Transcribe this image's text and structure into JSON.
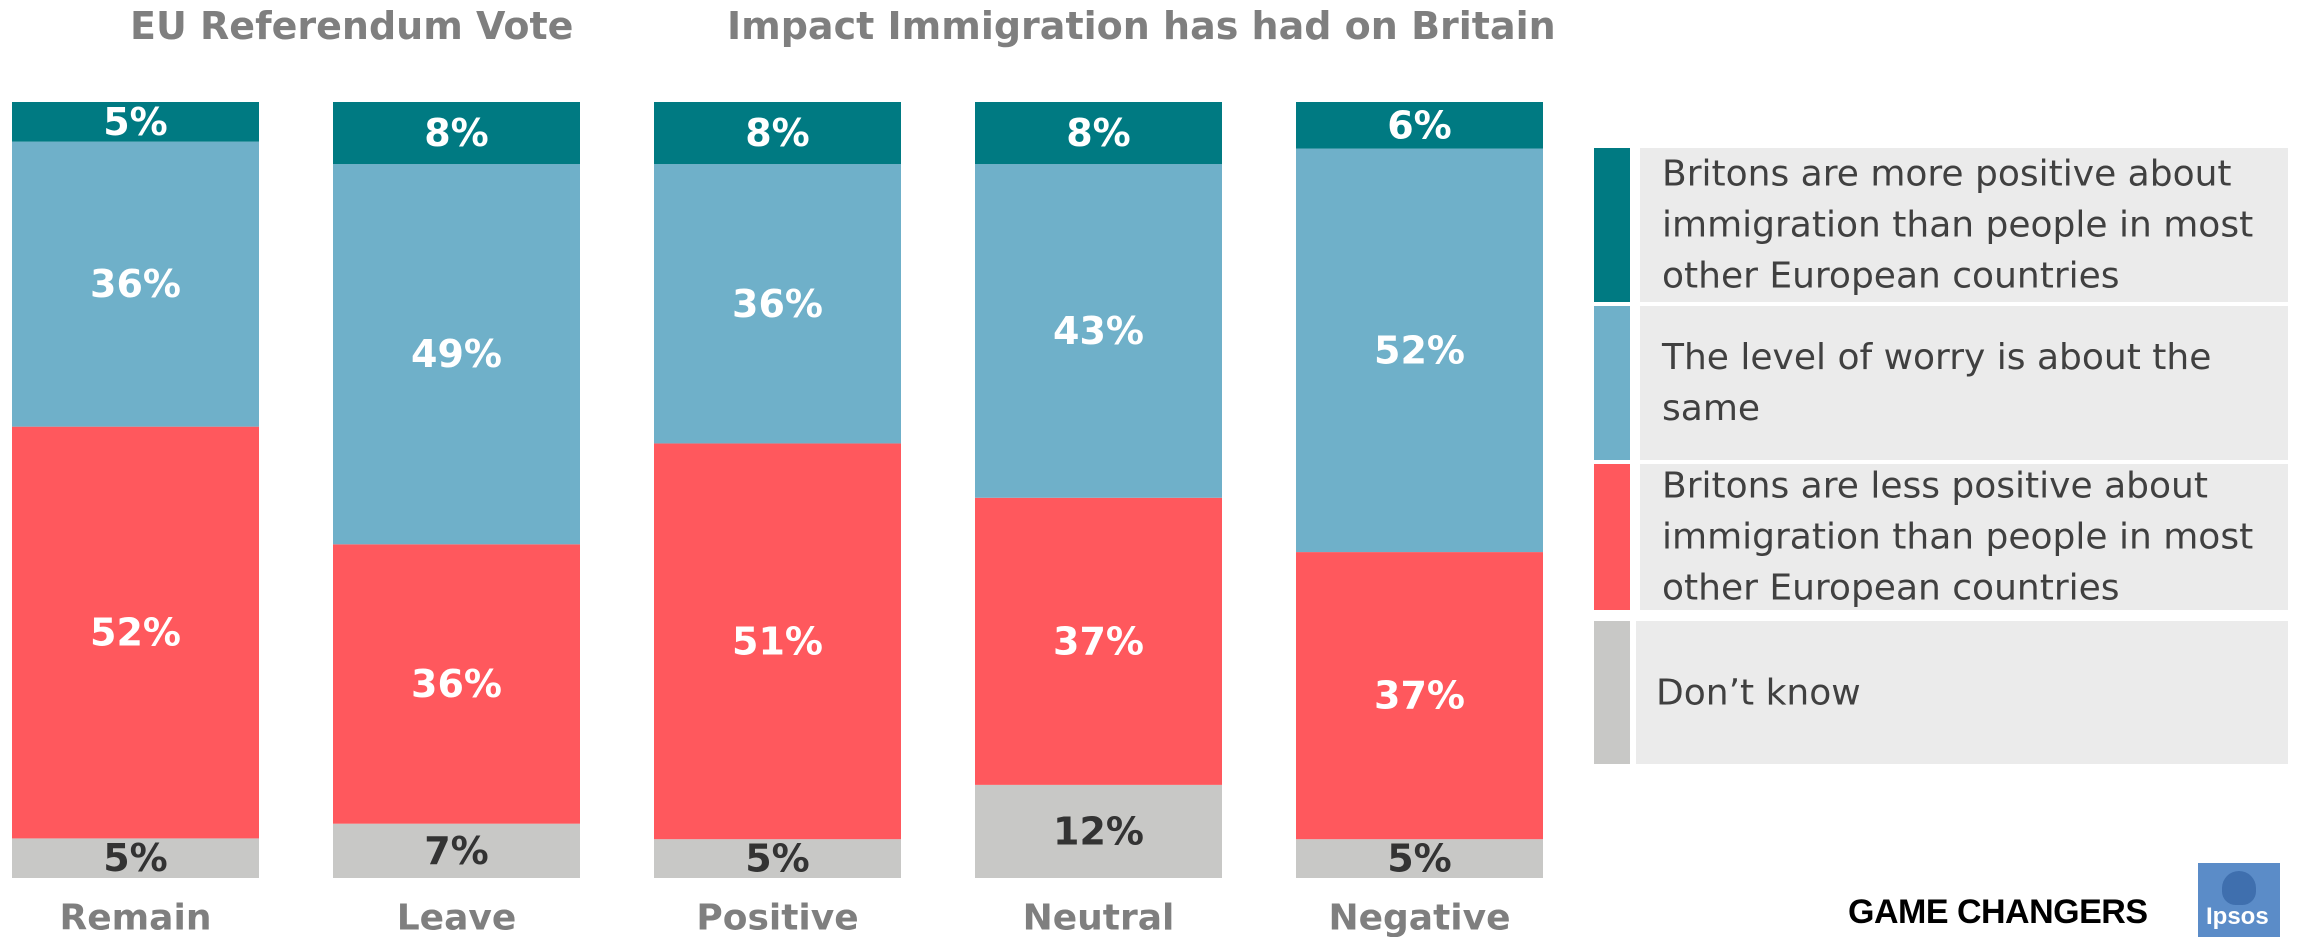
{
  "headings": {
    "left": "EU Referendum Vote",
    "right": "Impact Immigration has had on Britain"
  },
  "chart_data": {
    "type": "bar",
    "stacked": true,
    "percent": true,
    "categories": [
      "Remain",
      "Leave",
      "Positive",
      "Neutral",
      "Negative"
    ],
    "series": [
      {
        "name": "Don’t know",
        "color": "#c8c8c6",
        "label_color": "#333333",
        "values": [
          5,
          7,
          5,
          12,
          5
        ]
      },
      {
        "name": "Britons are less positive about immigration than people in most other European countries",
        "color": "#ff585d",
        "label_color": "#ffffff",
        "values": [
          52,
          36,
          51,
          37,
          37
        ]
      },
      {
        "name": "The level of worry is about the same",
        "color": "#6fb0c9",
        "label_color": "#ffffff",
        "values": [
          36,
          49,
          36,
          43,
          52
        ]
      },
      {
        "name": "Britons are more positive about immigration than people in most other European countries",
        "color": "#007a82",
        "label_color": "#ffffff",
        "values": [
          5,
          8,
          8,
          8,
          6
        ]
      }
    ],
    "ylim": [
      0,
      100
    ],
    "grid": false,
    "legend": "right"
  },
  "legend": [
    {
      "label": "Britons are more positive about immigration than people in most other European countries",
      "color": "#007a82"
    },
    {
      "label": "The level of worry is about the same",
      "color": "#6fb0c9"
    },
    {
      "label": "Britons are less positive about immigration than people in most other European countries",
      "color": "#ff585d"
    },
    {
      "label": "Don’t know",
      "color": "#c8c8c6"
    }
  ],
  "footer": {
    "brand": "GAME CHANGERS",
    "logo_text": "Ipsos",
    "logo_color": "#5b8cc8"
  }
}
